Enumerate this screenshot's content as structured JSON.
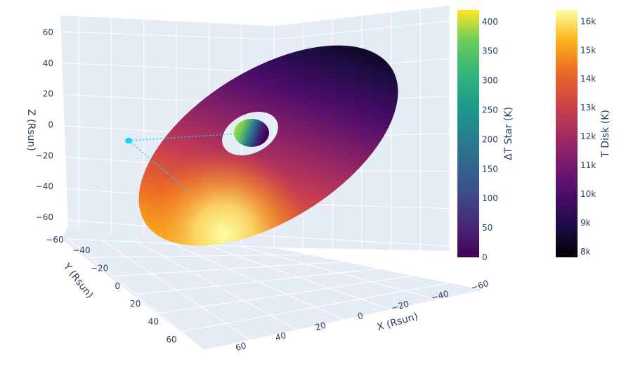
{
  "chart_data": {
    "type": "3d-surface",
    "scene": {
      "axes": {
        "x": {
          "title": "X (Rsun)",
          "ticks": [
            "−60",
            "−40",
            "−20",
            "0",
            "20",
            "40",
            "60"
          ]
        },
        "y": {
          "title": "Y (Rsun)",
          "ticks": [
            "−40",
            "−20",
            "0",
            "20",
            "40",
            "60"
          ]
        },
        "z": {
          "title": "Z (Rsun)",
          "ticks": [
            "60",
            "40",
            "20",
            "0",
            "−20",
            "−40",
            "−60"
          ]
        }
      },
      "grid": true,
      "background_color": "#e5ecf6"
    },
    "traces": [
      {
        "kind": "disk-surface",
        "colorscale": "inferno",
        "inner_radius_hole": true
      },
      {
        "kind": "star-sphere",
        "colorscale": "viridis"
      },
      {
        "kind": "companion-point",
        "color": "#19d3f3"
      },
      {
        "kind": "dotted-lines",
        "color": "#19d3f3"
      }
    ],
    "colorbars": [
      {
        "title": "ΔT Star (K)",
        "colorscale": "viridis",
        "range": [
          0,
          420
        ],
        "ticks": [
          "400",
          "350",
          "300",
          "250",
          "200",
          "150",
          "100",
          "50",
          "0"
        ]
      },
      {
        "title": "T Disk (K)",
        "colorscale": "inferno",
        "range": [
          7800,
          16400
        ],
        "ticks": [
          "16k",
          "15k",
          "14k",
          "13k",
          "12k",
          "11k",
          "10k",
          "9k",
          "8k"
        ]
      }
    ]
  }
}
